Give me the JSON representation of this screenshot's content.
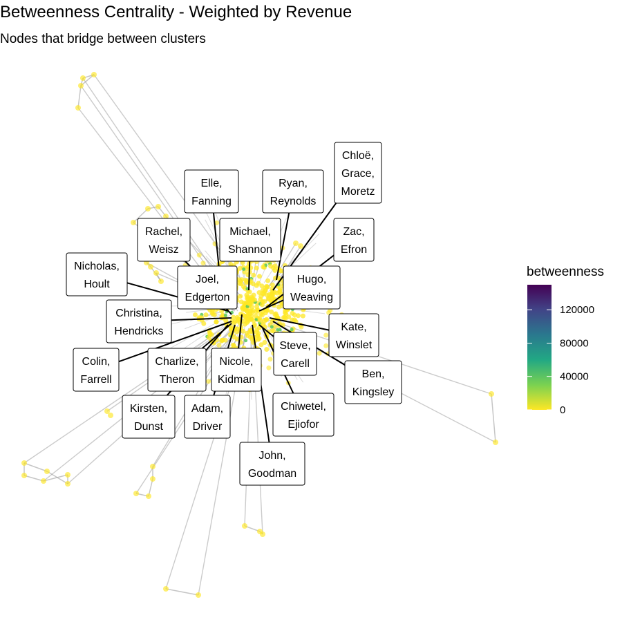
{
  "chart_data": {
    "type": "network",
    "title": "Betweenness Centrality - Weighted by Revenue",
    "subtitle": "Nodes that bridge between clusters",
    "legend": {
      "title": "betweenness",
      "placement": "right",
      "ticks": [
        "120000",
        "80000",
        "40000",
        "0"
      ],
      "tick_values": [
        120000,
        80000,
        40000,
        0
      ],
      "range": [
        0,
        150000
      ],
      "colors": [
        "#fde725",
        "#7ad151",
        "#22a884",
        "#2a788e",
        "#414487",
        "#440154"
      ]
    },
    "labels": [
      {
        "lines": [
          "Elle,",
          "Fanning"
        ]
      },
      {
        "lines": [
          "Ryan,",
          "Reynolds"
        ]
      },
      {
        "lines": [
          "Chloë,",
          "Grace,",
          "Moretz"
        ]
      },
      {
        "lines": [
          "Rachel,",
          "Weisz"
        ]
      },
      {
        "lines": [
          "Michael,",
          "Shannon"
        ]
      },
      {
        "lines": [
          "Zac,",
          "Efron"
        ]
      },
      {
        "lines": [
          "Nicholas,",
          "Hoult"
        ]
      },
      {
        "lines": [
          "Joel,",
          "Edgerton"
        ]
      },
      {
        "lines": [
          "Hugo,",
          "Weaving"
        ]
      },
      {
        "lines": [
          "Christina,",
          "Hendricks"
        ]
      },
      {
        "lines": [
          "Kate,",
          "Winslet"
        ]
      },
      {
        "lines": [
          "Steve,",
          "Carell"
        ]
      },
      {
        "lines": [
          "Colin,",
          "Farrell"
        ]
      },
      {
        "lines": [
          "Charlize,",
          "Theron"
        ]
      },
      {
        "lines": [
          "Nicole,",
          "Kidman"
        ]
      },
      {
        "lines": [
          "Ben,",
          "Kingsley"
        ]
      },
      {
        "lines": [
          "Kirsten,",
          "Dunst"
        ]
      },
      {
        "lines": [
          "Adam,",
          "Driver"
        ]
      },
      {
        "lines": [
          "Chiwetel,",
          "Ejiofor"
        ]
      },
      {
        "lines": [
          "John,",
          "Goodman"
        ]
      }
    ],
    "node_color": "#fde725",
    "edge_color": "#a0a0a0",
    "leader_color": "#000000"
  }
}
